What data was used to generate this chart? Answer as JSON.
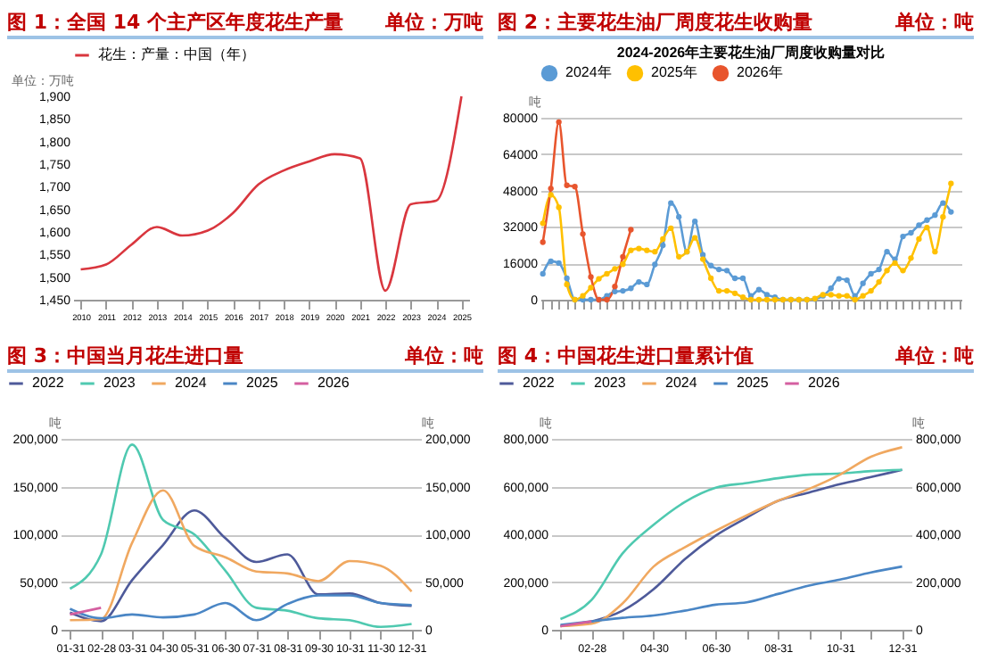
{
  "chart_data": [
    {
      "type": "line",
      "title": "图 1：全国 14 个主产区年度花生产量",
      "subtitle": "单位：万吨",
      "ylabel": "单位：万吨",
      "categories": [
        "2010",
        "2011",
        "2012",
        "2013",
        "2014",
        "2015",
        "2016",
        "2017",
        "2018",
        "2019",
        "2020",
        "2021",
        "2022",
        "2023",
        "2024",
        "2025"
      ],
      "series": [
        {
          "name": "花生：产量：中国（年）",
          "color": "#d9363e",
          "values": [
            1517,
            1528,
            1572,
            1611,
            1592,
            1603,
            1642,
            1705,
            1736,
            1756,
            1772,
            1763,
            1470,
            1661,
            1669,
            1900
          ]
        }
      ],
      "ylim": [
        1450,
        1900
      ],
      "yticks": [
        {
          "value": 1450,
          "label": "1,450"
        },
        {
          "value": 1500,
          "label": "1,500"
        },
        {
          "value": 1550,
          "label": "1,550"
        },
        {
          "value": 1600,
          "label": "1,600"
        },
        {
          "value": 1650,
          "label": "1,650"
        },
        {
          "value": 1700,
          "label": "1,700"
        },
        {
          "value": 1750,
          "label": "1,750"
        },
        {
          "value": 1800,
          "label": "1,800"
        },
        {
          "value": 1850,
          "label": "1,850"
        },
        {
          "value": 1900,
          "label": "1,900"
        }
      ],
      "grid": false,
      "legend": "top",
      "marker": "none"
    },
    {
      "type": "line",
      "title": "图 2：主要花生油厂周度花生收购量",
      "subtitle": "单位：吨",
      "ylabel": "吨",
      "annotations": [
        "2024-2026年主要花生油厂周度收购量对比"
      ],
      "categories": [
        null,
        null,
        null,
        null,
        null,
        null,
        null,
        null,
        null,
        null,
        null,
        null,
        null,
        null,
        null,
        null,
        null,
        null,
        null,
        null,
        null,
        null,
        null,
        null,
        null,
        null,
        null,
        null,
        null,
        null,
        null,
        null,
        null,
        null,
        null,
        null,
        null,
        null,
        null,
        null,
        null,
        null,
        null,
        null,
        null,
        null,
        null,
        null,
        null,
        null,
        null,
        null,
        null
      ],
      "series": [
        {
          "name": "2024年",
          "color": "#5b9bd5",
          "values": [
            11400,
            16900,
            16100,
            9400,
            0,
            0,
            0,
            0,
            1700,
            3600,
            3900,
            5000,
            7800,
            6700,
            15500,
            23900,
            42500,
            36400,
            21100,
            34400,
            19700,
            15000,
            13300,
            12800,
            9400,
            9400,
            1700,
            4400,
            2200,
            1100,
            0,
            0,
            0,
            0,
            300,
            1700,
            5000,
            9200,
            8600,
            1700,
            7200,
            11400,
            13300,
            21100,
            17800,
            27800,
            29400,
            32800,
            35000,
            37200,
            42500,
            38600,
            null
          ]
        },
        {
          "name": "2025年",
          "color": "#ffc000",
          "values": [
            33600,
            46100,
            40600,
            6700,
            0,
            1700,
            5300,
            9200,
            11400,
            13600,
            15600,
            21700,
            22500,
            21700,
            21100,
            26700,
            31400,
            18900,
            21100,
            27200,
            17800,
            9400,
            3900,
            3900,
            2800,
            1100,
            0,
            0,
            0,
            0,
            0,
            0,
            0,
            0,
            500,
            2200,
            2200,
            1700,
            1700,
            0,
            1700,
            3900,
            7800,
            12800,
            16100,
            12800,
            18300,
            26700,
            31700,
            21100,
            36400,
            51100,
            null
          ]
        },
        {
          "name": "2026年",
          "color": "#e8552d",
          "values": [
            25300,
            48900,
            78100,
            50300,
            49700,
            28900,
            10000,
            0,
            0,
            5800,
            18900,
            30800,
            null,
            null,
            null,
            null,
            null,
            null,
            null,
            null,
            null,
            null,
            null,
            null,
            null,
            null,
            null,
            null,
            null,
            null,
            null,
            null,
            null,
            null,
            null,
            null,
            null,
            null,
            null,
            null,
            null,
            null,
            null,
            null,
            null,
            null,
            null,
            null,
            null,
            null,
            null,
            null,
            null
          ]
        }
      ],
      "ylim": [
        0,
        80000
      ],
      "yticks": [
        0,
        16000,
        32000,
        48000,
        64000,
        80000
      ],
      "grid": "y",
      "legend": "top",
      "marker": "circle"
    },
    {
      "type": "line",
      "title": "图 3：中国当月花生进口量",
      "subtitle": "单位：吨",
      "ylabel": "吨",
      "y2label": "吨",
      "categories": [
        "01-31",
        "02-28",
        "03-31",
        "04-30",
        "05-31",
        "06-30",
        "07-31",
        "08-31",
        "09-30",
        "10-31",
        "11-30",
        "12-31"
      ],
      "series": [
        {
          "name": "2022",
          "color": "#4e5a9a",
          "values": [
            18000,
            9000,
            52000,
            89000,
            125000,
            96000,
            71000,
            79000,
            37000,
            38000,
            28000,
            25000
          ]
        },
        {
          "name": "2023",
          "color": "#4fc9b0",
          "values": [
            43000,
            79000,
            194000,
            115000,
            100000,
            62000,
            23000,
            20000,
            12000,
            10000,
            3000,
            6000
          ]
        },
        {
          "name": "2024",
          "color": "#f0a860",
          "values": [
            10000,
            11000,
            91000,
            146000,
            88000,
            76000,
            61000,
            59000,
            51000,
            72000,
            67000,
            40000
          ]
        },
        {
          "name": "2025",
          "color": "#4a86c5",
          "values": [
            22000,
            12000,
            16000,
            13000,
            16000,
            28000,
            10000,
            27000,
            36000,
            36000,
            28000,
            26000
          ]
        },
        {
          "name": "2026",
          "color": "#d45fa0",
          "values": [
            16000,
            23000,
            null,
            null,
            null,
            null,
            null,
            null,
            null,
            null,
            null,
            null
          ]
        }
      ],
      "ylim": [
        0,
        200000
      ],
      "yticks": [
        0,
        {
          "value": 50000,
          "label": "50,000"
        },
        {
          "value": 100000,
          "label": "100,000"
        },
        {
          "value": 150000,
          "label": "150,000"
        },
        {
          "value": 200000,
          "label": "200,000"
        }
      ],
      "y2lim": [
        0,
        200000
      ],
      "y2ticks": [
        0,
        {
          "value": 50000,
          "label": "50,000"
        },
        {
          "value": 100000,
          "label": "100,000"
        },
        {
          "value": 150000,
          "label": "150,000"
        },
        {
          "value": 200000,
          "label": "200,000"
        }
      ],
      "grid": "y",
      "legend": "top left",
      "marker": "none"
    },
    {
      "type": "line",
      "title": "图 4：中国花生进口量累计值",
      "subtitle": "单位：吨",
      "ylabel": "吨",
      "y2label": "吨",
      "categories": [
        null,
        "02-28",
        null,
        "04-30",
        null,
        "06-30",
        null,
        "08-31",
        null,
        "10-31",
        null,
        "12-31"
      ],
      "series": [
        {
          "name": "2022",
          "color": "#4e5a9a",
          "values": [
            15000,
            35000,
            80000,
            170000,
            295000,
            395000,
            470000,
            540000,
            575000,
            610000,
            640000,
            670000
          ]
        },
        {
          "name": "2023",
          "color": "#4fc9b0",
          "values": [
            45000,
            125000,
            320000,
            440000,
            535000,
            595000,
            615000,
            635000,
            650000,
            655000,
            665000,
            670000
          ]
        },
        {
          "name": "2024",
          "color": "#f0a860",
          "values": [
            15000,
            25000,
            110000,
            265000,
            345000,
            415000,
            480000,
            540000,
            590000,
            650000,
            725000,
            765000
          ]
        },
        {
          "name": "2025",
          "color": "#4a86c5",
          "values": [
            20000,
            35000,
            50000,
            60000,
            80000,
            105000,
            115000,
            150000,
            185000,
            210000,
            240000,
            265000
          ]
        },
        {
          "name": "2026",
          "color": "#d45fa0",
          "values": [
            15000,
            35000,
            null,
            null,
            null,
            null,
            null,
            null,
            null,
            null,
            null,
            null
          ]
        }
      ],
      "ylim": [
        0,
        800000
      ],
      "yticks": [
        0,
        {
          "value": 200000,
          "label": "200,000"
        },
        {
          "value": 400000,
          "label": "400,000"
        },
        {
          "value": 600000,
          "label": "600,000"
        },
        {
          "value": 800000,
          "label": "800,000"
        }
      ],
      "y2lim": [
        0,
        800000
      ],
      "y2ticks": [
        0,
        {
          "value": 200000,
          "label": "200,000"
        },
        {
          "value": 400000,
          "label": "400,000"
        },
        {
          "value": 600000,
          "label": "600,000"
        },
        {
          "value": 800000,
          "label": "800,000"
        }
      ],
      "grid": "y",
      "legend": "top left",
      "marker": "none"
    }
  ]
}
